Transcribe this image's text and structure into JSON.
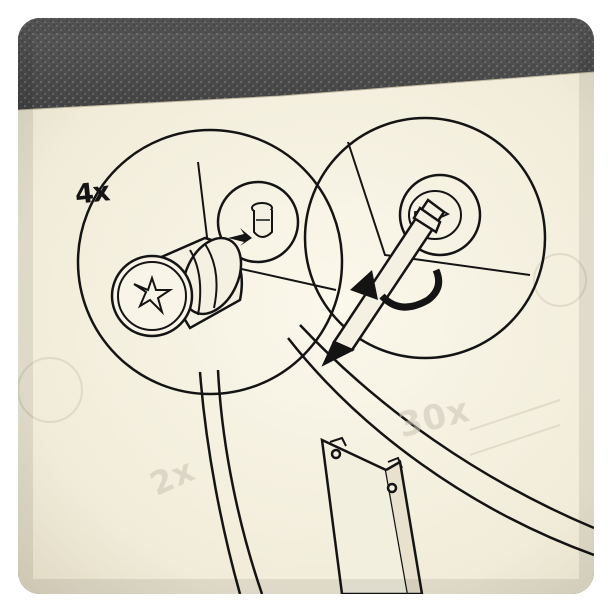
{
  "photo": {
    "instruction_quantity": "4x",
    "bleed_through_labels": [
      "30x",
      "2x"
    ]
  }
}
